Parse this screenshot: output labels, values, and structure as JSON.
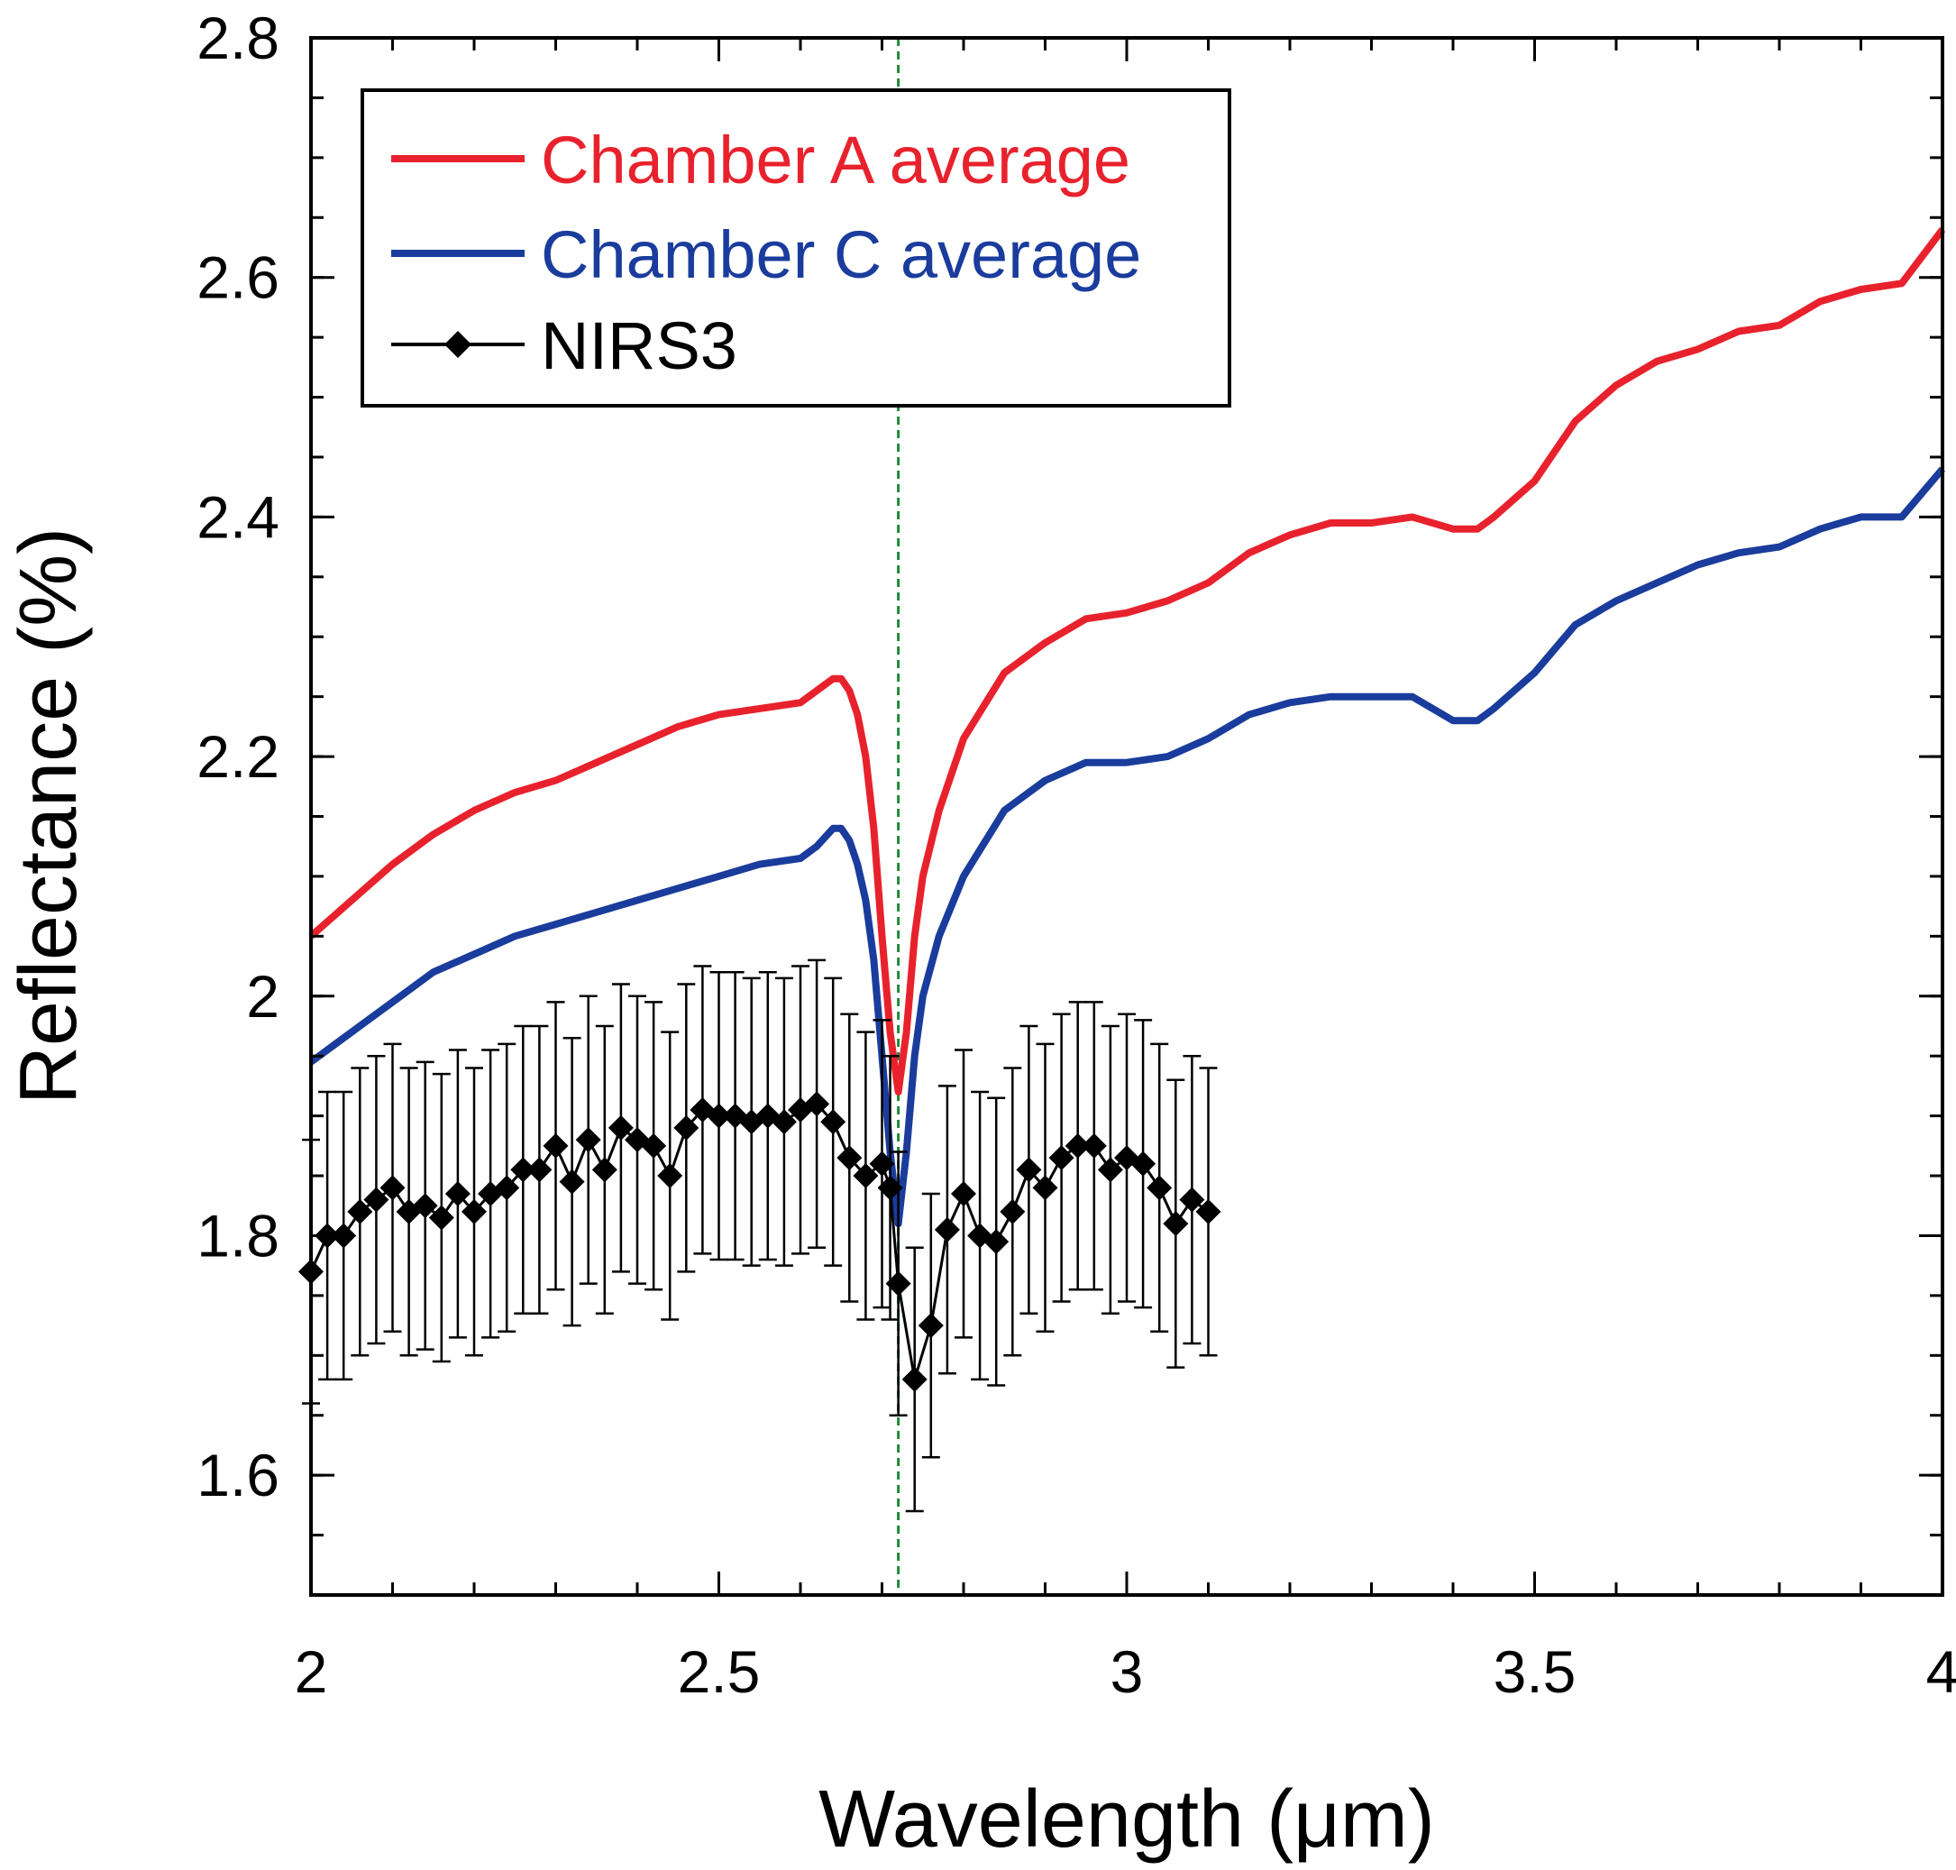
{
  "chart_data": {
    "type": "line",
    "xlabel": "Wavelength (μm)",
    "ylabel": "Reflectance (%)",
    "xlim": [
      2,
      4
    ],
    "ylim": [
      1.5,
      2.8
    ],
    "x_ticks": [
      "2",
      "2.5",
      "3",
      "3.5",
      "4"
    ],
    "y_ticks": [
      "1.6",
      "1.8",
      "2",
      "2.2",
      "2.4",
      "2.6",
      "2.8"
    ],
    "grid": false,
    "legend_position": "top-left",
    "reference_line": {
      "x": 2.72,
      "color": "#1f8a3a",
      "style": "dashed"
    },
    "series": [
      {
        "name": "Chamber A average",
        "color": "#e8222d",
        "style": "line",
        "x": [
          2.0,
          2.05,
          2.1,
          2.15,
          2.2,
          2.25,
          2.3,
          2.35,
          2.4,
          2.45,
          2.5,
          2.55,
          2.6,
          2.62,
          2.64,
          2.65,
          2.66,
          2.67,
          2.68,
          2.69,
          2.7,
          2.71,
          2.72,
          2.73,
          2.74,
          2.75,
          2.77,
          2.8,
          2.85,
          2.9,
          2.95,
          3.0,
          3.05,
          3.1,
          3.15,
          3.2,
          3.25,
          3.3,
          3.35,
          3.4,
          3.43,
          3.45,
          3.5,
          3.55,
          3.6,
          3.65,
          3.7,
          3.75,
          3.8,
          3.85,
          3.9,
          3.95,
          4.0
        ],
        "y": [
          2.05,
          2.08,
          2.11,
          2.135,
          2.155,
          2.17,
          2.18,
          2.195,
          2.21,
          2.225,
          2.235,
          2.24,
          2.245,
          2.255,
          2.265,
          2.265,
          2.255,
          2.235,
          2.2,
          2.14,
          2.05,
          1.97,
          1.92,
          1.97,
          2.05,
          2.1,
          2.155,
          2.215,
          2.27,
          2.295,
          2.315,
          2.32,
          2.33,
          2.345,
          2.37,
          2.385,
          2.395,
          2.395,
          2.4,
          2.39,
          2.39,
          2.4,
          2.43,
          2.48,
          2.51,
          2.53,
          2.54,
          2.555,
          2.56,
          2.58,
          2.59,
          2.595,
          2.64
        ]
      },
      {
        "name": "Chamber C average",
        "color": "#1a3c9c",
        "style": "line",
        "x": [
          2.0,
          2.05,
          2.1,
          2.15,
          2.2,
          2.25,
          2.3,
          2.35,
          2.4,
          2.45,
          2.5,
          2.55,
          2.6,
          2.62,
          2.64,
          2.65,
          2.66,
          2.67,
          2.68,
          2.69,
          2.7,
          2.71,
          2.72,
          2.73,
          2.74,
          2.75,
          2.77,
          2.8,
          2.85,
          2.9,
          2.95,
          3.0,
          3.05,
          3.1,
          3.15,
          3.2,
          3.25,
          3.3,
          3.35,
          3.4,
          3.43,
          3.45,
          3.5,
          3.55,
          3.6,
          3.65,
          3.7,
          3.75,
          3.8,
          3.85,
          3.9,
          3.95,
          4.0
        ],
        "y": [
          1.945,
          1.97,
          1.995,
          2.02,
          2.035,
          2.05,
          2.06,
          2.07,
          2.08,
          2.09,
          2.1,
          2.11,
          2.115,
          2.125,
          2.14,
          2.14,
          2.13,
          2.11,
          2.08,
          2.03,
          1.95,
          1.87,
          1.81,
          1.87,
          1.95,
          2.0,
          2.05,
          2.1,
          2.155,
          2.18,
          2.195,
          2.195,
          2.2,
          2.215,
          2.235,
          2.245,
          2.25,
          2.25,
          2.25,
          2.23,
          2.23,
          2.24,
          2.27,
          2.31,
          2.33,
          2.345,
          2.36,
          2.37,
          2.375,
          2.39,
          2.4,
          2.4,
          2.44
        ]
      },
      {
        "name": "NIRS3",
        "color": "#000000",
        "style": "line-markers",
        "marker": "diamond",
        "x": [
          2.0,
          2.02,
          2.04,
          2.06,
          2.08,
          2.1,
          2.12,
          2.14,
          2.16,
          2.18,
          2.2,
          2.22,
          2.24,
          2.26,
          2.28,
          2.3,
          2.32,
          2.34,
          2.36,
          2.38,
          2.4,
          2.42,
          2.44,
          2.46,
          2.48,
          2.5,
          2.52,
          2.54,
          2.56,
          2.58,
          2.6,
          2.62,
          2.64,
          2.66,
          2.68,
          2.7,
          2.71,
          2.72,
          2.74,
          2.76,
          2.78,
          2.8,
          2.82,
          2.84,
          2.86,
          2.88,
          2.9,
          2.92,
          2.94,
          2.96,
          2.98,
          3.0,
          3.02,
          3.04,
          3.06,
          3.08,
          3.1
        ],
        "y": [
          1.77,
          1.8,
          1.8,
          1.82,
          1.83,
          1.84,
          1.82,
          1.825,
          1.815,
          1.835,
          1.82,
          1.835,
          1.84,
          1.855,
          1.855,
          1.875,
          1.845,
          1.88,
          1.855,
          1.89,
          1.88,
          1.875,
          1.85,
          1.89,
          1.905,
          1.9,
          1.9,
          1.895,
          1.9,
          1.895,
          1.905,
          1.91,
          1.895,
          1.865,
          1.85,
          1.86,
          1.84,
          1.76,
          1.68,
          1.725,
          1.805,
          1.835,
          1.8,
          1.795,
          1.82,
          1.855,
          1.84,
          1.865,
          1.875,
          1.875,
          1.855,
          1.865,
          1.86,
          1.84,
          1.81,
          1.83,
          1.82
        ],
        "error": [
          0.11,
          0.12,
          0.12,
          0.12,
          0.12,
          0.12,
          0.12,
          0.12,
          0.12,
          0.12,
          0.12,
          0.12,
          0.12,
          0.12,
          0.12,
          0.12,
          0.12,
          0.12,
          0.12,
          0.12,
          0.12,
          0.12,
          0.12,
          0.12,
          0.12,
          0.12,
          0.12,
          0.12,
          0.12,
          0.12,
          0.12,
          0.12,
          0.12,
          0.12,
          0.12,
          0.12,
          0.11,
          0.11,
          0.11,
          0.11,
          0.12,
          0.12,
          0.12,
          0.12,
          0.12,
          0.12,
          0.12,
          0.12,
          0.12,
          0.12,
          0.12,
          0.12,
          0.12,
          0.12,
          0.12,
          0.12,
          0.12
        ]
      }
    ]
  }
}
